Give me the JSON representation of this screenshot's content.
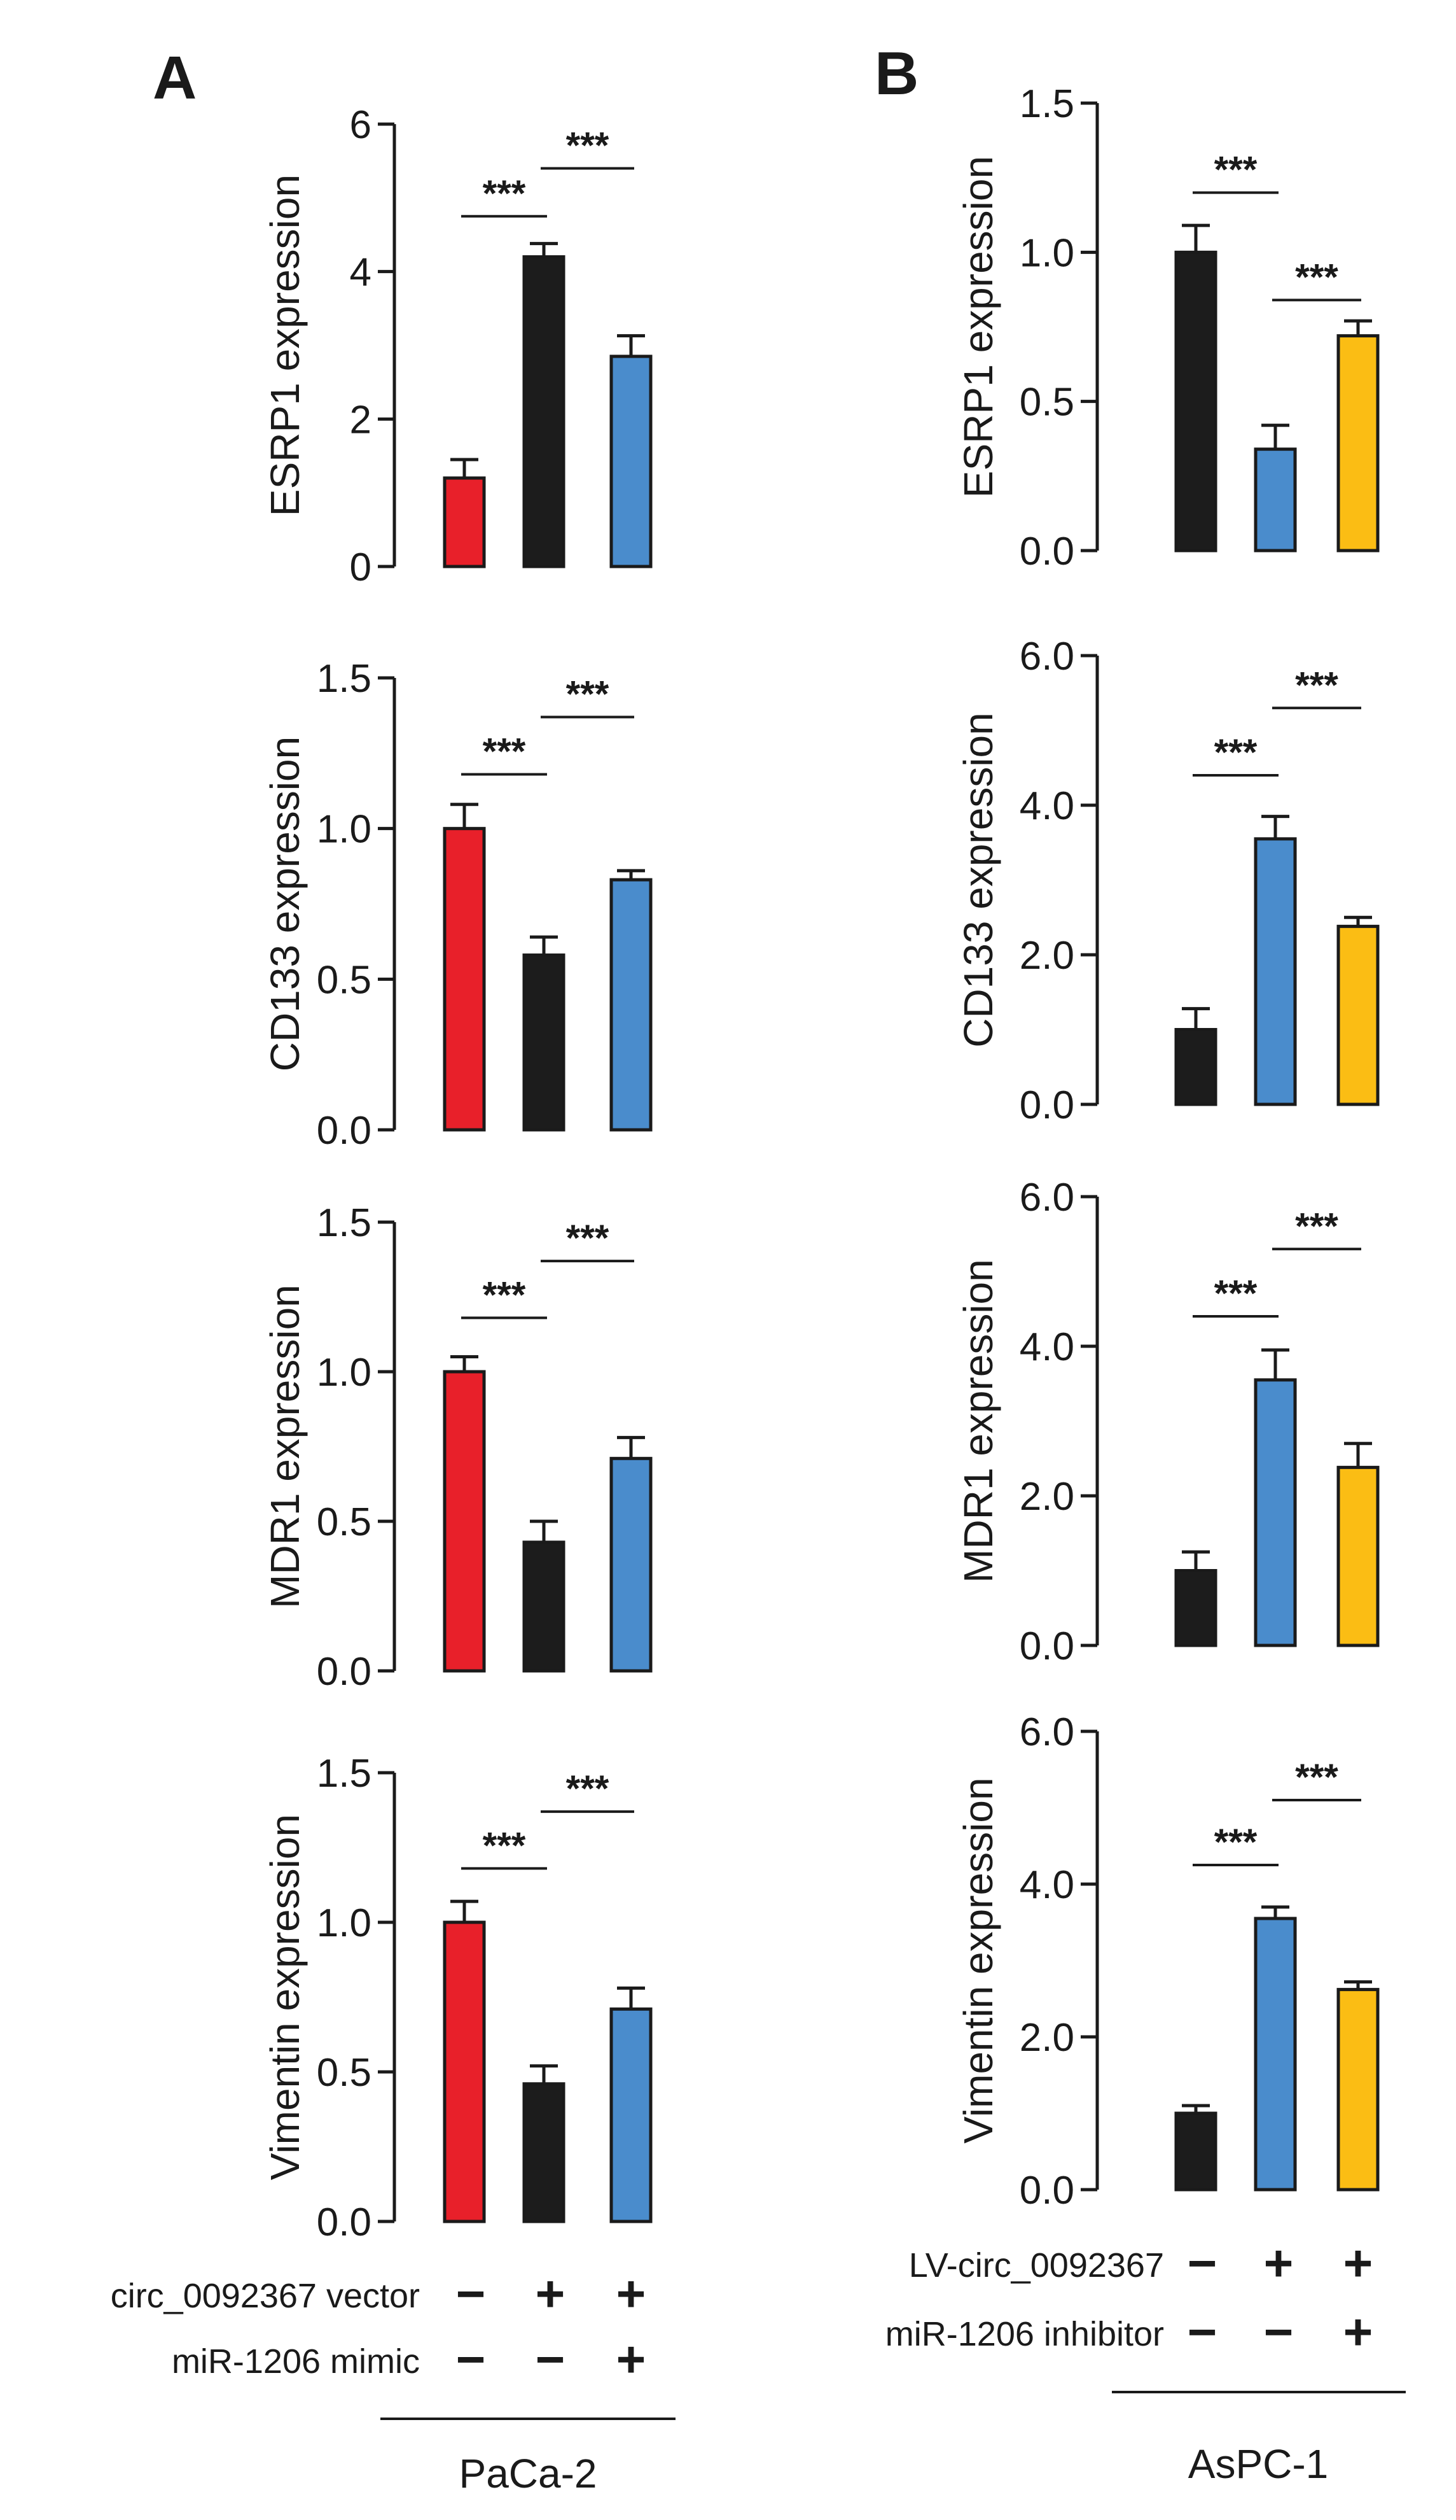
{
  "chart_data": {
    "type": "bar",
    "panels": [
      {
        "label": "A",
        "cell_line": "PaCa-2",
        "conditions": [
          {
            "name": "circ_0092367 vector",
            "signs": [
              "−",
              "+",
              "+"
            ]
          },
          {
            "name": "miR-1206 mimic",
            "signs": [
              "−",
              "−",
              "+"
            ]
          }
        ],
        "charts": [
          {
            "ylabel": "ESRP1 expression",
            "ylim": [
              0,
              6
            ],
            "ticks": [
              "0",
              "2",
              "4",
              "6"
            ],
            "tick_values": [
              0,
              2,
              4,
              6
            ],
            "values": [
              1.2,
              4.2,
              2.85
            ],
            "errors": [
              0.25,
              0.18,
              0.28
            ],
            "colors": [
              "#e8202a",
              "#1c1c1c",
              "#4a8ccc"
            ],
            "significance": [
              {
                "from": 0,
                "to": 1,
                "label": "***",
                "y": 4.75
              },
              {
                "from": 1,
                "to": 2,
                "label": "***",
                "y": 5.4
              }
            ]
          },
          {
            "ylabel": "CD133 expression",
            "ylim": [
              0,
              1.5
            ],
            "ticks": [
              "0.0",
              "0.5",
              "1.0",
              "1.5"
            ],
            "tick_values": [
              0,
              0.5,
              1.0,
              1.5
            ],
            "values": [
              1.0,
              0.58,
              0.83
            ],
            "errors": [
              0.08,
              0.06,
              0.03
            ],
            "colors": [
              "#e8202a",
              "#1c1c1c",
              "#4a8ccc"
            ],
            "significance": [
              {
                "from": 0,
                "to": 1,
                "label": "***",
                "y": 1.18
              },
              {
                "from": 1,
                "to": 2,
                "label": "***",
                "y": 1.37
              }
            ]
          },
          {
            "ylabel": "MDR1 expression",
            "ylim": [
              0,
              1.5
            ],
            "ticks": [
              "0.0",
              "0.5",
              "1.0",
              "1.5"
            ],
            "tick_values": [
              0,
              0.5,
              1.0,
              1.5
            ],
            "values": [
              1.0,
              0.43,
              0.71
            ],
            "errors": [
              0.05,
              0.07,
              0.07
            ],
            "colors": [
              "#e8202a",
              "#1c1c1c",
              "#4a8ccc"
            ],
            "significance": [
              {
                "from": 0,
                "to": 1,
                "label": "***",
                "y": 1.18
              },
              {
                "from": 1,
                "to": 2,
                "label": "***",
                "y": 1.37
              }
            ]
          },
          {
            "ylabel": "Vimentin expression",
            "ylim": [
              0,
              1.5
            ],
            "ticks": [
              "0.0",
              "0.5",
              "1.0",
              "1.5"
            ],
            "tick_values": [
              0,
              0.5,
              1.0,
              1.5
            ],
            "values": [
              1.0,
              0.46,
              0.71
            ],
            "errors": [
              0.07,
              0.06,
              0.07
            ],
            "colors": [
              "#e8202a",
              "#1c1c1c",
              "#4a8ccc"
            ],
            "significance": [
              {
                "from": 0,
                "to": 1,
                "label": "***",
                "y": 1.18
              },
              {
                "from": 1,
                "to": 2,
                "label": "***",
                "y": 1.37
              }
            ]
          }
        ]
      },
      {
        "label": "B",
        "cell_line": "AsPC-1",
        "conditions": [
          {
            "name": "LV-circ_0092367",
            "signs": [
              "−",
              "+",
              "+"
            ]
          },
          {
            "name": "miR-1206 inhibitor",
            "signs": [
              "−",
              "−",
              "+"
            ]
          }
        ],
        "charts": [
          {
            "ylabel": "ESRP1 expression",
            "ylim": [
              0,
              1.5
            ],
            "ticks": [
              "0.0",
              "0.5",
              "1.0",
              "1.5"
            ],
            "tick_values": [
              0,
              0.5,
              1.0,
              1.5
            ],
            "values": [
              1.0,
              0.34,
              0.72
            ],
            "errors": [
              0.09,
              0.08,
              0.05
            ],
            "colors": [
              "#1c1c1c",
              "#4a8ccc",
              "#fbbd14"
            ],
            "significance": [
              {
                "from": 0,
                "to": 1,
                "label": "***",
                "y": 1.2
              },
              {
                "from": 1,
                "to": 2,
                "label": "***",
                "y": 0.84
              }
            ]
          },
          {
            "ylabel": "CD133 expression",
            "ylim": [
              0,
              6
            ],
            "ticks": [
              "0.0",
              "2.0",
              "4.0",
              "6.0"
            ],
            "tick_values": [
              0,
              2,
              4,
              6
            ],
            "values": [
              1.0,
              3.55,
              2.38
            ],
            "errors": [
              0.28,
              0.3,
              0.12
            ],
            "colors": [
              "#1c1c1c",
              "#4a8ccc",
              "#fbbd14"
            ],
            "significance": [
              {
                "from": 0,
                "to": 1,
                "label": "***",
                "y": 4.4
              },
              {
                "from": 1,
                "to": 2,
                "label": "***",
                "y": 5.3
              }
            ]
          },
          {
            "ylabel": "MDR1 expression",
            "ylim": [
              0,
              6
            ],
            "ticks": [
              "0.0",
              "2.0",
              "4.0",
              "6.0"
            ],
            "tick_values": [
              0,
              2,
              4,
              6
            ],
            "values": [
              1.0,
              3.55,
              2.38
            ],
            "errors": [
              0.25,
              0.4,
              0.32
            ],
            "colors": [
              "#1c1c1c",
              "#4a8ccc",
              "#fbbd14"
            ],
            "significance": [
              {
                "from": 0,
                "to": 1,
                "label": "***",
                "y": 4.4
              },
              {
                "from": 1,
                "to": 2,
                "label": "***",
                "y": 5.3
              }
            ]
          },
          {
            "ylabel": "Vimentin expression",
            "ylim": [
              0,
              6
            ],
            "ticks": [
              "0.0",
              "2.0",
              "4.0",
              "6.0"
            ],
            "tick_values": [
              0,
              2,
              4,
              6
            ],
            "values": [
              1.0,
              3.55,
              2.62
            ],
            "errors": [
              0.1,
              0.15,
              0.1
            ],
            "colors": [
              "#1c1c1c",
              "#4a8ccc",
              "#fbbd14"
            ],
            "significance": [
              {
                "from": 0,
                "to": 1,
                "label": "***",
                "y": 4.25
              },
              {
                "from": 1,
                "to": 2,
                "label": "***",
                "y": 5.1
              }
            ]
          }
        ]
      }
    ]
  }
}
